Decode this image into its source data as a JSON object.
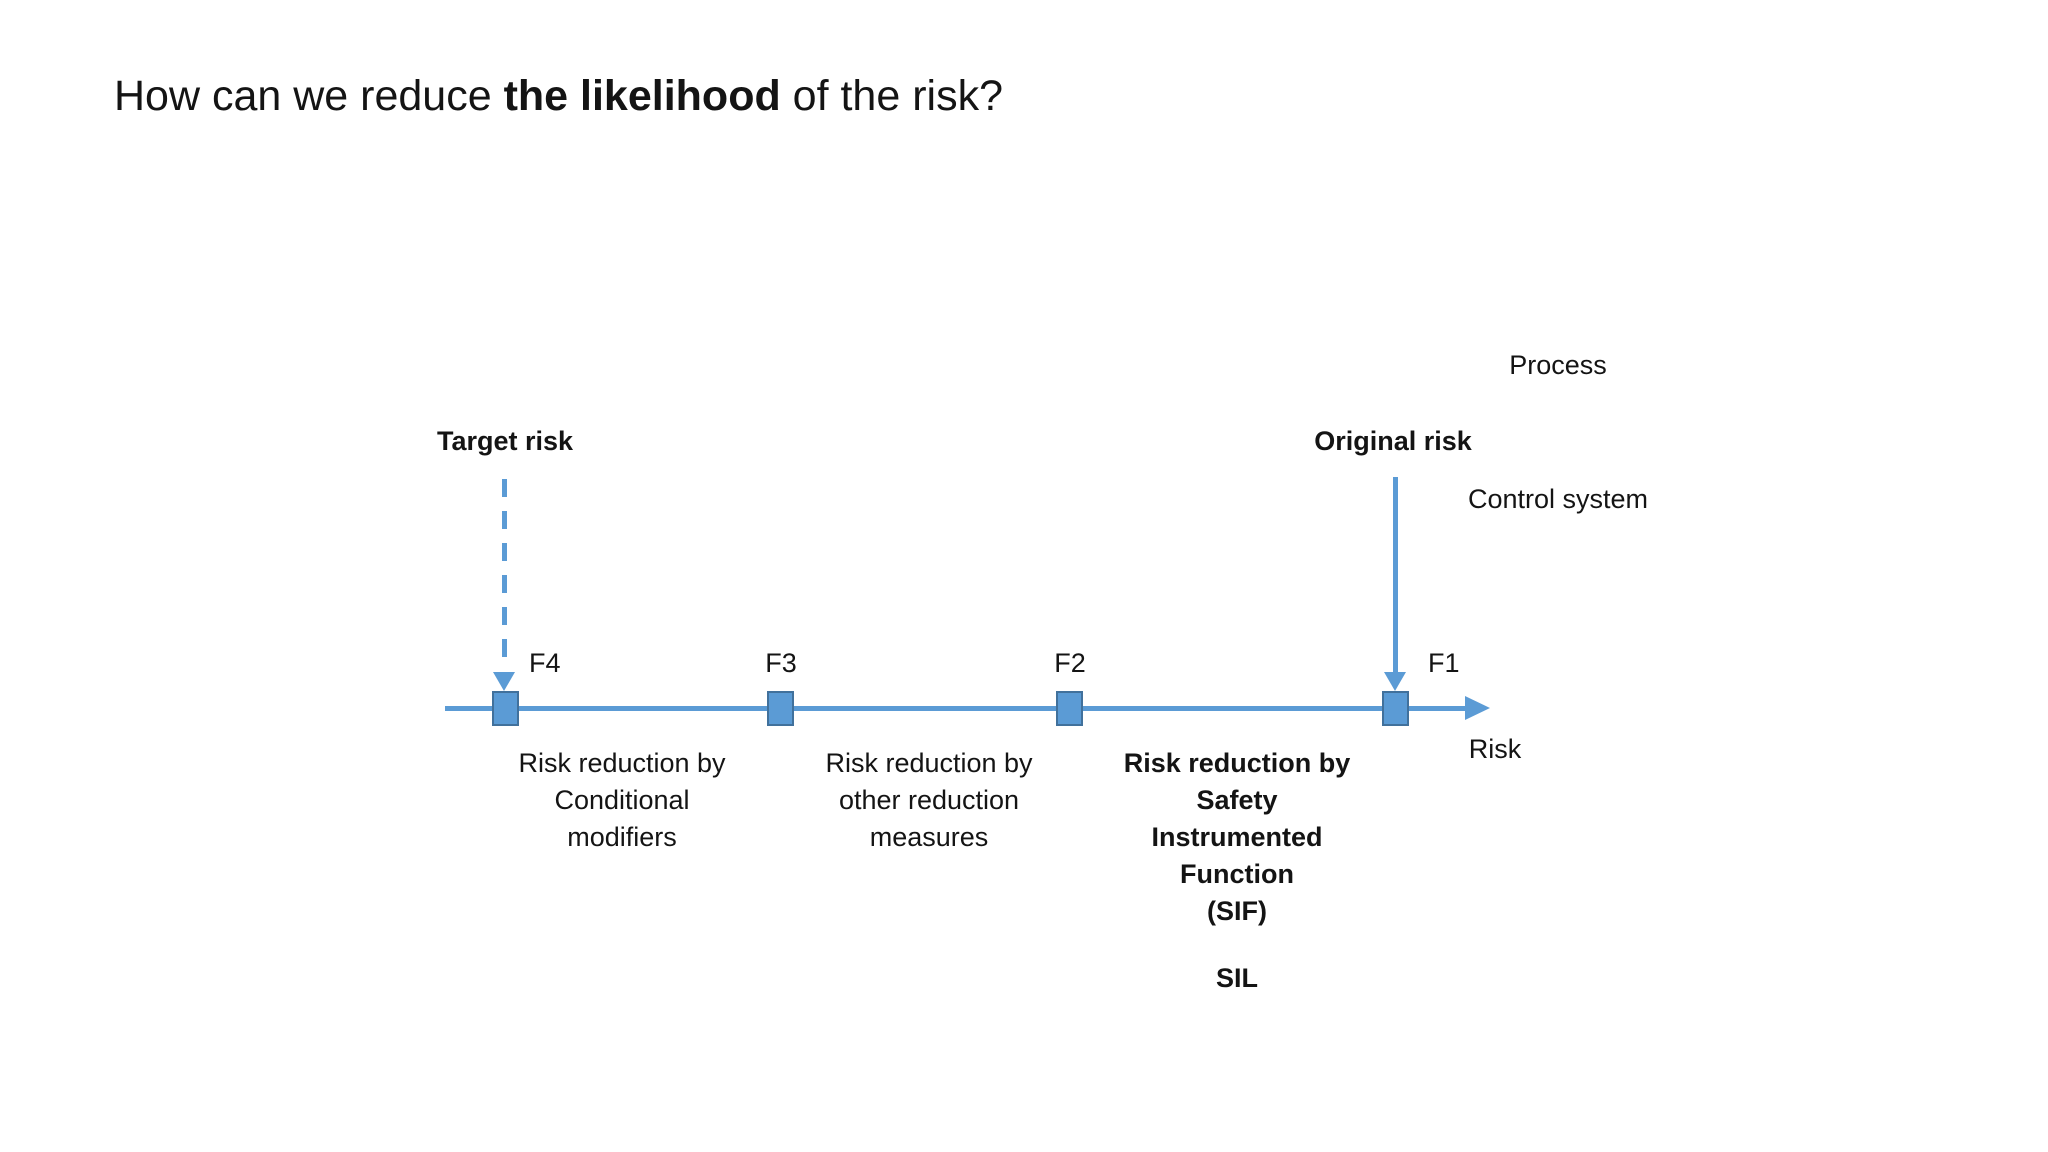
{
  "slide": {
    "title": {
      "prefix": "How can we reduce ",
      "emphasis": "the likelihood",
      "suffix": " of the risk?"
    }
  },
  "diagram": {
    "colors": {
      "accent_blue": "#5B9BD5",
      "marker_border": "#41719C",
      "ink": "#141414"
    },
    "axis_label": "Risk",
    "markers": [
      {
        "label": "F4"
      },
      {
        "label": "F3"
      },
      {
        "label": "F2"
      },
      {
        "label": "F1"
      }
    ],
    "target_risk_label": "Target risk",
    "original_risk_label": "Original risk",
    "process_label": "Process",
    "control_system_label": "Control system",
    "reduction_blocks": [
      {
        "bold": false,
        "lines": [
          "Risk reduction by",
          "Conditional",
          "modifiers"
        ]
      },
      {
        "bold": false,
        "lines": [
          "Risk reduction by",
          "other reduction",
          "measures"
        ]
      },
      {
        "bold": true,
        "lines": [
          "Risk reduction by",
          "Safety",
          "Instrumented",
          "Function",
          "(SIF)"
        ]
      }
    ],
    "sil_label": "SIL"
  }
}
